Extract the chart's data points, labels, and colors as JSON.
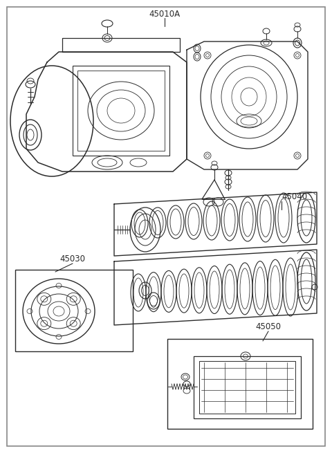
{
  "title": "45010A",
  "label_45040": "45040",
  "label_45030": "45030",
  "label_45050": "45050",
  "bg_color": "#ffffff",
  "line_color": "#2a2a2a",
  "border_color": "#888888",
  "figsize": [
    4.8,
    6.55
  ],
  "dpi": 100
}
